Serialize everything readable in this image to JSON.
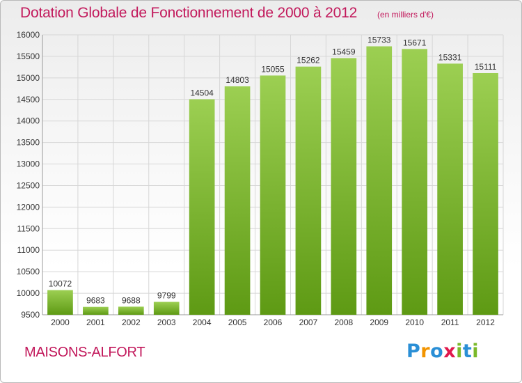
{
  "title": "Dotation Globale de Fonctionnement de 2000 à 2012",
  "units_note": "(en milliers d'€)",
  "city": "MAISONS-ALFORT",
  "logo": {
    "letters": [
      "P",
      "r",
      "o",
      "x",
      "i",
      "t",
      "i"
    ],
    "colors": [
      "#2a8fd6",
      "#f29400",
      "#2a8fd6",
      "#e0184d",
      "#7ab929",
      "#2a8fd6",
      "#7ab929"
    ]
  },
  "colors": {
    "bar_top": "#9ccf52",
    "bar_bottom": "#5e9a14",
    "grid": "#d6d6d6",
    "accent": "#c2185b"
  },
  "chart_data": {
    "type": "bar",
    "title": "Dotation Globale de Fonctionnement de 2000 à 2012",
    "subtitle": "(en milliers d'€)",
    "xlabel": "",
    "ylabel": "",
    "categories": [
      "2000",
      "2001",
      "2002",
      "2003",
      "2004",
      "2005",
      "2006",
      "2007",
      "2008",
      "2009",
      "2010",
      "2011",
      "2012"
    ],
    "values": [
      10072,
      9683,
      9688,
      9799,
      14504,
      14803,
      15055,
      15262,
      15459,
      15733,
      15671,
      15331,
      15111
    ],
    "ylim": [
      9500,
      16000
    ],
    "yticks": [
      9500,
      10000,
      10500,
      11000,
      11500,
      12000,
      12500,
      13000,
      13500,
      14000,
      14500,
      15000,
      15500,
      16000
    ],
    "grid": true,
    "legend": "none"
  }
}
